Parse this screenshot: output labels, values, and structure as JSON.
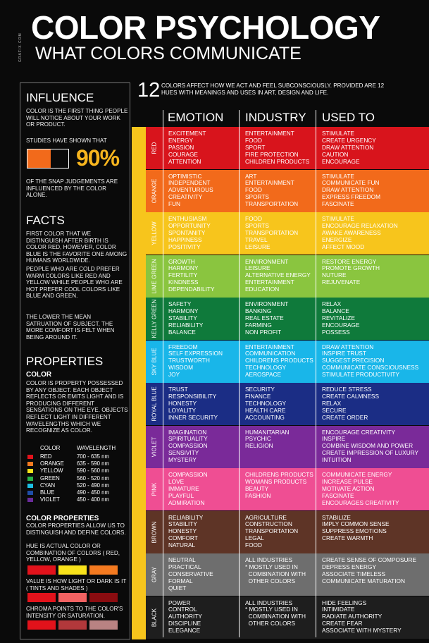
{
  "brand_mark": "GRAFIX.COM",
  "title": "COLOR PSYCHOLOGY",
  "subtitle": "WHAT COLORS COMMUNICATE",
  "intro": {
    "number": "12",
    "text": "COLORS AFFECT HOW WE ACT AND FEEL SUBCONSCIOUSLY.  PROVIDED ARE 12 HUES WITH MEANINGS AND USES IN ART, DESIGN AND LIFE."
  },
  "columns": [
    "EMOTION",
    "INDUSTRY",
    "USED TO"
  ],
  "influence": {
    "heading": "INFLUENCE",
    "text1": "COLOR IS THE FIRST THING PEOPLE WILL NOTICE ABOUT YOUR WORK OR PRODUCT.",
    "text2": "STUDIES HAVE SHOWN THAT",
    "percent": "90%",
    "percent_value": 90,
    "bar_color": "#f26a1b",
    "text3": "OF THE SNAP JUDGEMENTS ARE INFLUENCED BY THE COLOR  ALONE."
  },
  "facts": {
    "heading": "FACTS",
    "p1": "FIRST COLOR THAT WE DISTINGUISH AFTER BIRTH IS COLOR RED, HOWEVER, COLOR BLUE IS THE FAVORITE ONE AMONG HUMANS WORLDWIDE.",
    "p2": "PEOPLE WHO ARE COLD PREFER WARM COLORS LIKE RED AND YELLOW WHILE PEOPLE WHO ARE HOT PREFER COOL COLORS LIKE BLUE AND GREEN.",
    "p3": "THE LOWER THE MEAN SATRUATION OF SUBJECT, THE MORE COMFORT IS FELT WHEN BEING AROUND IT."
  },
  "properties": {
    "heading": "PROPERTIES",
    "sub1": "COLOR",
    "text1": "COLOR IS PROPERTY POSSESSED BY ANY OBJECT. EACH OBJECT REFLECTS OR EMITS LIGHT AND IS PRODUCING DIFFERENT SENSATIONS ON THE EYE. OBJECTS REFLECT LIGHT IN DIFFERENT WAVELENGTHS WHICH WE RECOGNIZE AS COLOR.",
    "wl_head_color": "COLOR",
    "wl_head_wave": "WAVELENGTH",
    "wavelengths": [
      {
        "name": "RED",
        "range": "700 - 635 nm",
        "color": "#e2121b"
      },
      {
        "name": "ORANGE",
        "range": "635 - 590 nm",
        "color": "#f47a20"
      },
      {
        "name": "YELLOW",
        "range": "590 - 560 nm",
        "color": "#f8e21b"
      },
      {
        "name": "GREEN",
        "range": "560 - 520 nm",
        "color": "#27b34a"
      },
      {
        "name": "CYAN",
        "range": "520 - 490 nm",
        "color": "#1cc0e4"
      },
      {
        "name": "BLUE",
        "range": "490 - 450 nm",
        "color": "#1f4ea8"
      },
      {
        "name": "VIOLET",
        "range": "450 - 400 nm",
        "color": "#6a2b9b"
      }
    ],
    "sub2": "COLOR PROPERTIES",
    "text2": "COLOR PROPERTIES ALLOW US TO DISTINGUISH AND DEFINE COLORS.",
    "hue_text": "HUE IS ACTUAL COLOR OR COMBINATION OF COLORS ( RED, YELLOW, ORANGE )",
    "hue_swatches": [
      "#e2121b",
      "#f8e21b",
      "#f47a20"
    ],
    "value_text": "VALUE IS HOW LIGHT OR DARK IS IT ( TINTS AND SHADES )",
    "value_swatches": [
      "#e2121b",
      "#f26262",
      "#8a0c10"
    ],
    "chroma_text": "CHROMA POINTS TO THE COLOR'S INTENSITY OR SATURATION.",
    "chroma_swatches": [
      "#e2121b",
      "#b2383b",
      "#b98282"
    ]
  },
  "hues": [
    {
      "name": "RED",
      "color": "#d8141c",
      "label_color": "#ffffff",
      "emotion": [
        "EXCITEMENT",
        "ENERGY",
        "PASSION",
        "COURAGE",
        "ATTENTION"
      ],
      "industry": [
        "ENTERTAINMENT",
        "FOOD",
        "SPORT",
        "FIRE PROTECTION",
        "CHILDREN PRODUCTS"
      ],
      "used_to": [
        "STIMULATE",
        "CREATE URGENCY",
        "DRAW ATTENTION",
        "CAUTION",
        "ENCOURAGE"
      ]
    },
    {
      "name": "ORANGE",
      "color": "#f26a1b",
      "label_color": "#ffffff",
      "emotion": [
        "OPTIMISTIC",
        "INDEPENDENT",
        "ADVENTUROUS",
        "CREATIVITY",
        "FUN"
      ],
      "industry": [
        "ART",
        "ENTERTAINMENT",
        "FOOD",
        "SPORTS",
        "TRANSPORTATION"
      ],
      "used_to": [
        "STIMULATE",
        "COMMUNICATE FUN",
        "DRAW ATTENTION",
        "EXPRESS FREEDOM",
        "FASCINATE"
      ]
    },
    {
      "name": "YELLOW",
      "color": "#f7c51c",
      "label_color": "#ffffff",
      "emotion": [
        "ENTHUSIASM",
        "OPPORTUNITY",
        "SPONTANITY",
        "HAPPINESS",
        "POSITIVITY"
      ],
      "industry": [
        "FOOD",
        "SPORTS",
        "TRANSPORTATION",
        "TRAVEL",
        "LEISURE"
      ],
      "used_to": [
        "STIMULATE",
        "ENCOURAGE RELAXATION",
        "AWAKE AWARENESS",
        "ENERGIZE",
        "AFFECT MOOD"
      ]
    },
    {
      "name": "LIME GREEN",
      "color": "#8ac53f",
      "label_color": "#ffffff",
      "emotion": [
        "GROWTH",
        "HARMONY",
        "FERTILITY",
        "KINDNESS",
        "DEPENDABILITY"
      ],
      "industry": [
        "ENVIRONMENT",
        "LEISURE",
        "ALTERNATIVE ENERGY",
        "ENTERTAINMENT",
        "EDUCATION"
      ],
      "used_to": [
        "RESTORE ENERGY",
        "PROMOTE GROWTH",
        "NUTURE",
        "REJUVENATE"
      ]
    },
    {
      "name": "KELLY GREEN",
      "color": "#0f7a3b",
      "label_color": "#ffffff",
      "emotion": [
        "SAFETY",
        "HARMONY",
        "STABILITY",
        "RELIABILITY",
        "BALANCE"
      ],
      "industry": [
        "ENVIRONMENT",
        "BANKING",
        "REAL ESTATE",
        "FARMING",
        "NON PROFIT"
      ],
      "used_to": [
        "RELAX",
        "BALANCE",
        "REVITALIZE",
        "ENCOURAGE",
        "POSSESS"
      ]
    },
    {
      "name": "SKY BLUE",
      "color": "#19b6e9",
      "label_color": "#ffffff",
      "emotion": [
        "FREEDOM",
        "SELF EXPRESSION",
        "TRUSTWORTH",
        "WISDOM",
        "JOY"
      ],
      "industry": [
        "ENTERTAINMENT",
        "COMMUNICATION",
        "CHILDRENS PRODUCTS",
        "TECHNOLOGY",
        "AEROSPACE"
      ],
      "used_to": [
        "DRAW ATTENTION",
        "INSPIRE TRUST",
        "SUGGEST PRECISION",
        "COMMUNICATE CONSCIOUSNESS",
        "STIMULATE PRODUCTIVITY"
      ]
    },
    {
      "name": "ROYAL BLUE",
      "color": "#1b2d85",
      "label_color": "#ffffff",
      "emotion": [
        "TRUST",
        "RESPONSIBILITY",
        "HONESTY",
        "LOYALITY",
        "INNER SECURITY"
      ],
      "industry": [
        "SECURITY",
        "FINANCE",
        "TECHNOLOGY",
        "HEALTH CARE",
        "ACCOUNTING"
      ],
      "used_to": [
        "REDUCE STRESS",
        "CREATE CALMNESS",
        "RELAX",
        "SECURE",
        "CREATE ORDER"
      ]
    },
    {
      "name": "VIOLET",
      "color": "#7a2a99",
      "label_color": "#ffffff",
      "emotion": [
        "IMAGINATION",
        "SPIRITUALITY",
        "COMPASSION",
        "SENSIVITY",
        "MYSTERY"
      ],
      "industry": [
        "HUMANITARIAN",
        "PSYCHIC",
        "RELIGION"
      ],
      "used_to": [
        "ENCOURAGE CREATIVITY",
        "INSPIRE",
        "COMBINE WISDOM AND POWER",
        "CREATE IMPRESSION OF LUXURY",
        "INTUITION"
      ]
    },
    {
      "name": "PINK",
      "color": "#ef4e93",
      "label_color": "#ffffff",
      "emotion": [
        "COMPASSION",
        "LOVE",
        "IMMATURE",
        "PLAYFUL",
        "ADMIRATION"
      ],
      "industry": [
        "CHILDRENS PRODUCTS",
        "WOMANS PRODUCTS",
        "BEAUTY",
        "FASHION"
      ],
      "used_to": [
        "COMMUNICATE ENERGY",
        "INCREASE PULSE",
        "MOTIVATE ACTION",
        "FASCINATE",
        "ENCOURAGES CREATIVITY"
      ]
    },
    {
      "name": "BROWN",
      "color": "#5e3426",
      "label_color": "#ffffff",
      "emotion": [
        "RELIABILITY",
        "STABILITY",
        "HONESTY",
        "COMFORT",
        "NATURAL"
      ],
      "industry": [
        "AGRICULTURE",
        "CONSTRUCTION",
        "TRANSPORTATION",
        "LEGAL",
        "FOOD"
      ],
      "used_to": [
        "STABILIZE",
        "IMPLY COMMON SENSE",
        "SUPPRESS EMOTIONS",
        "CREATE WARMTH"
      ]
    },
    {
      "name": "GRAY",
      "color": "#6e6e6e",
      "label_color": "#ffffff",
      "emotion": [
        "NEUTRAL",
        "PRACTICAL",
        "CONSERVATIVE",
        "FORMAL",
        "QUIET"
      ],
      "industry": [
        "ALL INDUSTRIES",
        "* MOSTLY USED IN",
        "  COMBINATION WITH",
        "  OTHER COLORS"
      ],
      "used_to": [
        "CREATE SENSE OF COMPOSURE",
        "DEPRESS ENERGY",
        "ASSOCIATE TIMELESS",
        "COMMUNICATE MATURATION"
      ]
    },
    {
      "name": "BLACK",
      "color": "#1e1e1e",
      "label_color": "#ffffff",
      "emotion": [
        "POWER",
        "CONTROL",
        "AUTHORITY",
        "DISCIPLINE",
        "ELEGANCE"
      ],
      "industry": [
        "ALL INDUSTRIES",
        "* MOSTLY USED IN",
        "  COMBINATION WITH",
        "  OTHER COLORS"
      ],
      "used_to": [
        "HIDE FEELINGS",
        "INTIMIDATE",
        "RADIATE AUTHORITY",
        "CREATE FEAR",
        "ASSOCIATE WITH MYSTERY"
      ]
    }
  ]
}
